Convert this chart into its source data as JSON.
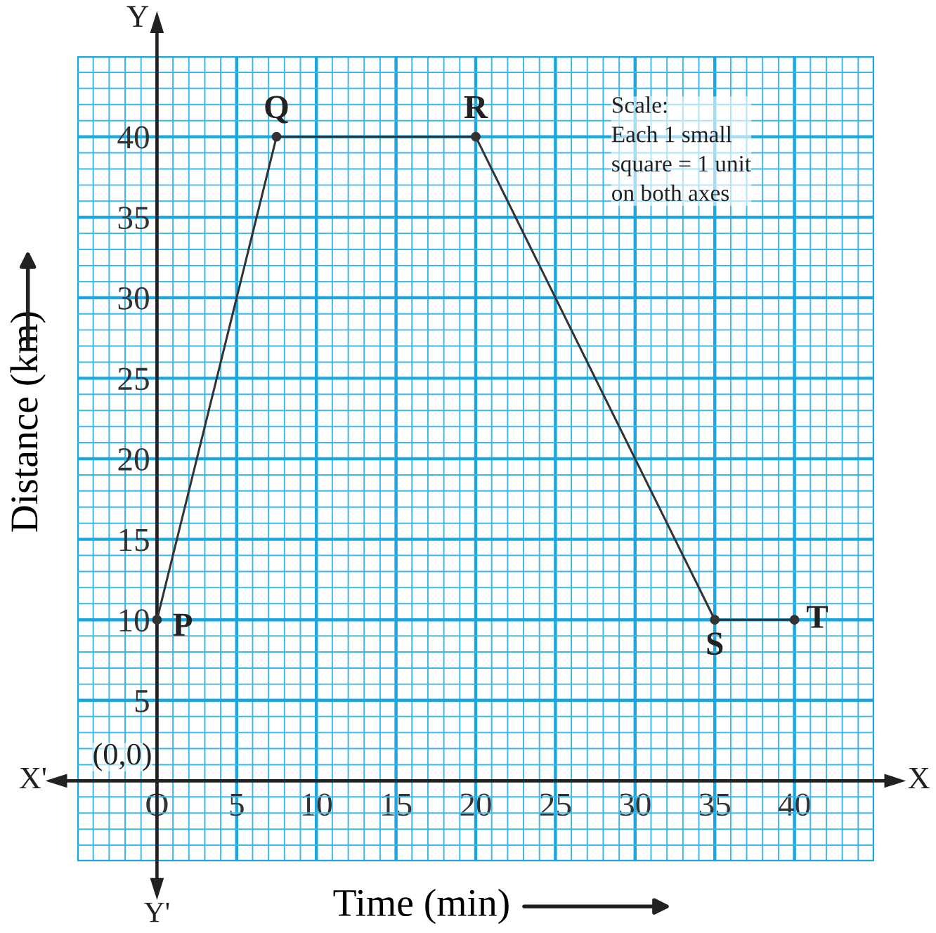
{
  "chart_data": {
    "type": "line",
    "xlabel": "Time (min)",
    "ylabel": "Distance (km)",
    "x": [
      0,
      7.5,
      20,
      35,
      40
    ],
    "series": [
      {
        "color": "#333333",
        "values": [
          10,
          40,
          40,
          10,
          10
        ]
      }
    ],
    "xlim": [
      -5,
      45
    ],
    "ylim": [
      -5,
      45
    ],
    "xticks": [
      {
        "value": -5,
        "label": null
      },
      {
        "value": -4,
        "label": null
      },
      {
        "value": -3,
        "label": null
      },
      {
        "value": -2,
        "label": null
      },
      {
        "value": -1,
        "label": null
      },
      {
        "value": 0,
        "label": "O"
      },
      {
        "value": 1,
        "label": null
      },
      {
        "value": 2,
        "label": null
      },
      {
        "value": 3,
        "label": null
      },
      {
        "value": 4,
        "label": null
      },
      5,
      {
        "value": 6,
        "label": null
      },
      {
        "value": 7,
        "label": null
      },
      {
        "value": 8,
        "label": null
      },
      {
        "value": 9,
        "label": null
      },
      10,
      {
        "value": 11,
        "label": null
      },
      {
        "value": 12,
        "label": null
      },
      {
        "value": 13,
        "label": null
      },
      {
        "value": 14,
        "label": null
      },
      15,
      {
        "value": 16,
        "label": null
      },
      {
        "value": 17,
        "label": null
      },
      {
        "value": 18,
        "label": null
      },
      {
        "value": 19,
        "label": null
      },
      20,
      {
        "value": 21,
        "label": null
      },
      {
        "value": 22,
        "label": null
      },
      {
        "value": 23,
        "label": null
      },
      {
        "value": 24,
        "label": null
      },
      25,
      {
        "value": 26,
        "label": null
      },
      {
        "value": 27,
        "label": null
      },
      {
        "value": 28,
        "label": null
      },
      {
        "value": 29,
        "label": null
      },
      30,
      {
        "value": 31,
        "label": null
      },
      {
        "value": 32,
        "label": null
      },
      {
        "value": 33,
        "label": null
      },
      {
        "value": 34,
        "label": null
      },
      35,
      {
        "value": 36,
        "label": null
      },
      {
        "value": 37,
        "label": null
      },
      {
        "value": 38,
        "label": null
      },
      {
        "value": 39,
        "label": null
      },
      40,
      {
        "value": 41,
        "label": null
      },
      {
        "value": 42,
        "label": null
      },
      {
        "value": 43,
        "label": null
      },
      {
        "value": 44,
        "label": null
      },
      {
        "value": 45,
        "label": null
      }
    ],
    "yticks": [
      {
        "value": -5,
        "label": null
      },
      {
        "value": -4,
        "label": null
      },
      {
        "value": -3,
        "label": null
      },
      {
        "value": -2,
        "label": null
      },
      {
        "value": -1,
        "label": null
      },
      {
        "value": 0,
        "label": null
      },
      {
        "value": 1,
        "label": null
      },
      {
        "value": 2,
        "label": null
      },
      {
        "value": 3,
        "label": null
      },
      {
        "value": 4,
        "label": null
      },
      5,
      {
        "value": 6,
        "label": null
      },
      {
        "value": 7,
        "label": null
      },
      {
        "value": 8,
        "label": null
      },
      {
        "value": 9,
        "label": null
      },
      10,
      {
        "value": 11,
        "label": null
      },
      {
        "value": 12,
        "label": null
      },
      {
        "value": 13,
        "label": null
      },
      {
        "value": 14,
        "label": null
      },
      15,
      {
        "value": 16,
        "label": null
      },
      {
        "value": 17,
        "label": null
      },
      {
        "value": 18,
        "label": null
      },
      {
        "value": 19,
        "label": null
      },
      20,
      {
        "value": 21,
        "label": null
      },
      {
        "value": 22,
        "label": null
      },
      {
        "value": 23,
        "label": null
      },
      {
        "value": 24,
        "label": null
      },
      25,
      {
        "value": 26,
        "label": null
      },
      {
        "value": 27,
        "label": null
      },
      {
        "value": 28,
        "label": null
      },
      {
        "value": 29,
        "label": null
      },
      30,
      {
        "value": 31,
        "label": null
      },
      {
        "value": 32,
        "label": null
      },
      {
        "value": 33,
        "label": null
      },
      {
        "value": 34,
        "label": null
      },
      35,
      {
        "value": 36,
        "label": null
      },
      {
        "value": 37,
        "label": null
      },
      {
        "value": 38,
        "label": null
      },
      {
        "value": 39,
        "label": null
      },
      40,
      {
        "value": 41,
        "label": null
      },
      {
        "value": 42,
        "label": null
      },
      {
        "value": 43,
        "label": null
      },
      {
        "value": 44,
        "label": null
      },
      {
        "value": 45,
        "label": null
      }
    ],
    "grid": true,
    "marker": "circle",
    "line_style": "solid",
    "annotations": [
      {
        "text": "P",
        "x": 0,
        "y": 10
      },
      {
        "text": "Q",
        "x": 7.5,
        "y": 40
      },
      {
        "text": "R",
        "x": 20,
        "y": 40
      },
      {
        "text": "S",
        "x": 35,
        "y": 10
      },
      {
        "text": "T",
        "x": 40,
        "y": 10
      },
      "(0,0)",
      "X",
      "X'",
      "Y",
      "Y'",
      "Scale:\nEach 1 small\nsquare = 1 unit\non both axes"
    ]
  }
}
